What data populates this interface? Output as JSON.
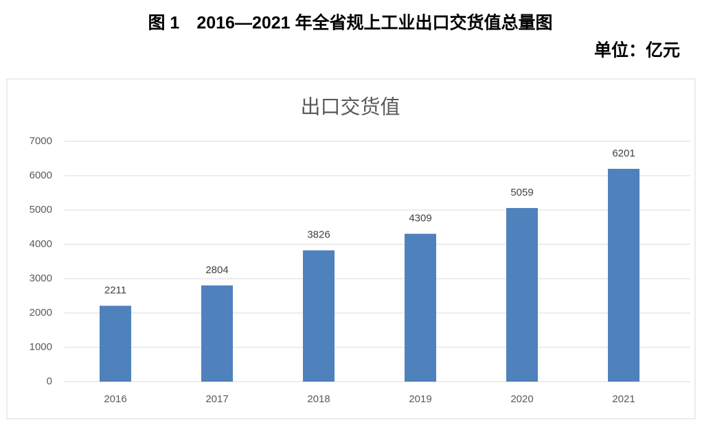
{
  "header": {
    "title": "图 1　2016—2021 年全省规上工业出口交货值总量图",
    "unit": "单位：亿元"
  },
  "chart_data": {
    "type": "bar",
    "title": "出口交货值",
    "categories": [
      "2016",
      "2017",
      "2018",
      "2019",
      "2020",
      "2021"
    ],
    "values": [
      2211,
      2804,
      3826,
      4309,
      5059,
      6201
    ],
    "color": "#4f81bd",
    "ylim": [
      0,
      7000
    ],
    "yticks": [
      0,
      1000,
      2000,
      3000,
      4000,
      5000,
      6000,
      7000
    ],
    "grid": true
  }
}
